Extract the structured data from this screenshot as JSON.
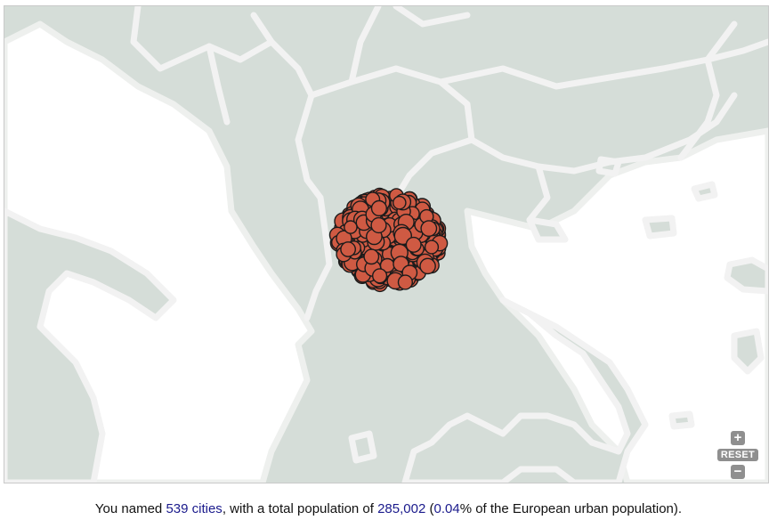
{
  "map": {
    "land_color": "#d5ddd8",
    "water_color": "#ffffff",
    "border_color": "#f2f2f2",
    "marker_fill": "#cf5a43",
    "marker_stroke": "#1b1b1b",
    "city_count": 539
  },
  "controls": {
    "zoom_in_icon": "plus-icon",
    "zoom_in_label": "+",
    "reset_label": "RESET",
    "zoom_out_icon": "minus-icon",
    "zoom_out_label": "−"
  },
  "summary": {
    "prefix": "You named ",
    "cities_link": "539 cities",
    "middle": ", with a total population of ",
    "population": "285,002",
    "open_paren": " (",
    "percent": "0.04",
    "suffix": "% of the European urban population)."
  }
}
